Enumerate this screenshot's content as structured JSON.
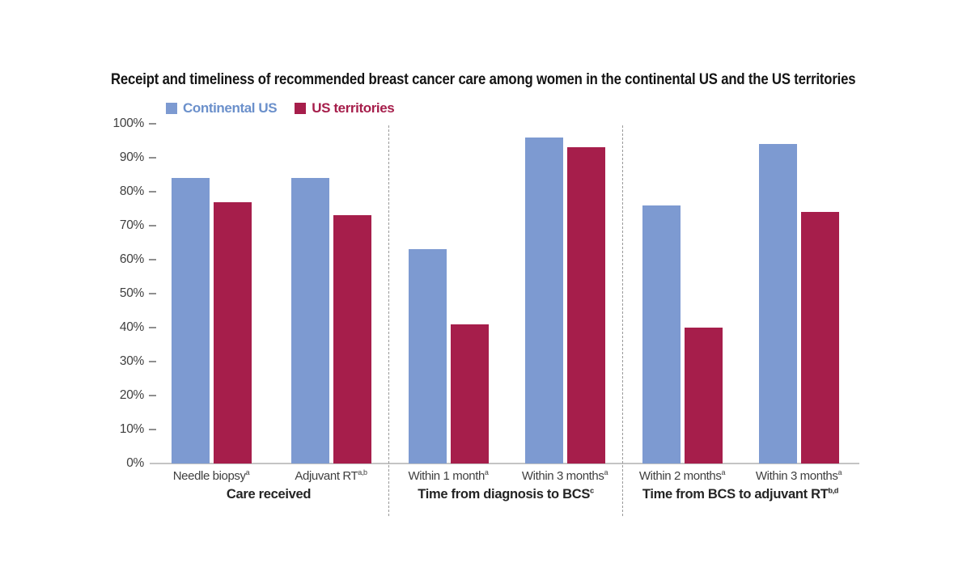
{
  "page": {
    "background": "#ffffff"
  },
  "title": "Receipt and timeliness of recommended breast cancer care among women in the continental US and the US territories",
  "legend": {
    "items": [
      {
        "label": "Continental US",
        "swatch_color": "#7D9AD1",
        "text_color": "#6B90CB"
      },
      {
        "label": "US territories",
        "swatch_color": "#A61E4B",
        "text_color": "#A61E4B"
      }
    ]
  },
  "chart_data": {
    "type": "bar",
    "title": "Receipt and timeliness of recommended breast cancer care among women in the continental US and the US territories",
    "xlabel": "",
    "ylabel": "",
    "ylim": [
      0,
      100
    ],
    "ytick_step": 10,
    "ytick_labels": [
      "0%",
      "10%",
      "20%",
      "30%",
      "40%",
      "50%",
      "60%",
      "70%",
      "80%",
      "90%",
      "100%"
    ],
    "grid": false,
    "legend_position": "top-left",
    "categories": [
      {
        "label": "Needle biopsy",
        "superscript": "a",
        "group": "Care received"
      },
      {
        "label": "Adjuvant RT",
        "superscript": "a,b",
        "group": "Care received"
      },
      {
        "label": "Within 1 month",
        "superscript": "a",
        "group": "Time from diagnosis to BCS"
      },
      {
        "label": "Within 3 months",
        "superscript": "a",
        "group": "Time from diagnosis to BCS"
      },
      {
        "label": "Within 2 months",
        "superscript": "a",
        "group": "Time from BCS to adjuvant RT"
      },
      {
        "label": "Within 3 months",
        "superscript": "a",
        "group": "Time from BCS to adjuvant RT"
      }
    ],
    "groups": [
      {
        "label": "Care received",
        "superscript": ""
      },
      {
        "label": "Time from diagnosis to BCS",
        "superscript": "c"
      },
      {
        "label": "Time from BCS to adjuvant RT",
        "superscript": "b,d"
      }
    ],
    "series": [
      {
        "name": "Continental US",
        "color": "#7D9AD1",
        "values": [
          84,
          84,
          63,
          96,
          76,
          94
        ]
      },
      {
        "name": "US territories",
        "color": "#A61E4B",
        "values": [
          77,
          73,
          41,
          93,
          40,
          74
        ]
      }
    ]
  }
}
